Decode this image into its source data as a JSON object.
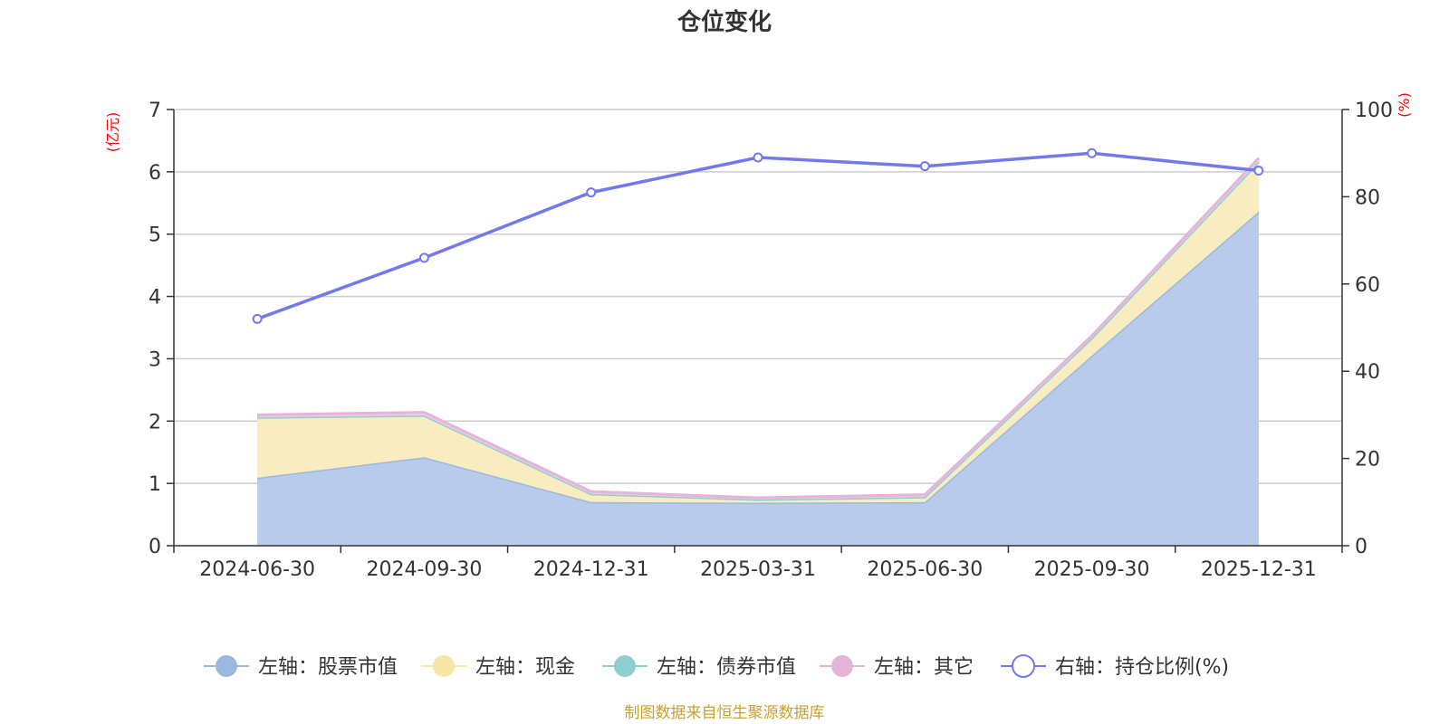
{
  "chart_data": {
    "type": "area",
    "title": "仓位变化",
    "categories": [
      "2024-06-30",
      "2024-09-30",
      "2024-12-31",
      "2025-03-31",
      "2025-06-30",
      "2025-09-30",
      "2025-12-31"
    ],
    "left_axis": {
      "unit": "(亿元)",
      "ylim": [
        0,
        7
      ],
      "ticks": [
        0,
        1,
        2,
        3,
        4,
        5,
        6,
        7
      ]
    },
    "right_axis": {
      "unit": "(%)",
      "ylim": [
        0,
        100
      ],
      "ticks": [
        0,
        20,
        40,
        60,
        80,
        100
      ]
    },
    "series": [
      {
        "name": "左轴：股票市值",
        "axis": "left",
        "stacked": true,
        "color": "#9bb8e0",
        "fill": "#b8cbea",
        "values": [
          1.09,
          1.42,
          0.7,
          0.69,
          0.7,
          3.05,
          5.36
        ]
      },
      {
        "name": "左轴：现金",
        "axis": "left",
        "stacked": true,
        "color": "#f7e6a5",
        "fill": "#f8ecc0",
        "values": [
          0.97,
          0.67,
          0.13,
          0.05,
          0.08,
          0.28,
          0.8
        ]
      },
      {
        "name": "左轴：债券市值",
        "axis": "left",
        "stacked": true,
        "color": "#8ed0d0",
        "fill": "#a8dcdc",
        "values": [
          0,
          0,
          0,
          0,
          0,
          0,
          0
        ]
      },
      {
        "name": "左轴：其它",
        "axis": "left",
        "stacked": true,
        "color": "#e6b4d8",
        "fill": "#efcbe4",
        "values": [
          0.04,
          0.05,
          0.04,
          0.03,
          0.04,
          0.04,
          0.06
        ]
      },
      {
        "name": "右轴：持仓比例(%)",
        "axis": "right",
        "type": "line",
        "color": "#7478ee",
        "values": [
          52,
          66,
          81,
          89,
          87,
          90,
          86
        ]
      }
    ],
    "legend_position": "bottom-center"
  },
  "source_text": "制图数据来自恒生聚源数据库"
}
